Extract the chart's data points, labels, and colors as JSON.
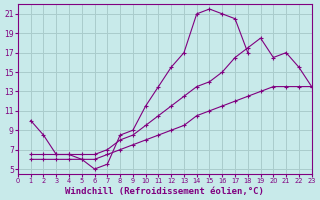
{
  "background_color": "#c8eaea",
  "grid_color": "#aacccc",
  "line_color": "#800080",
  "marker": "+",
  "xlabel": "Windchill (Refroidissement éolien,°C)",
  "xlabel_fontsize": 6.5,
  "ylabel_ticks": [
    5,
    7,
    9,
    11,
    13,
    15,
    17,
    19,
    21
  ],
  "xlabel_ticks": [
    0,
    1,
    2,
    3,
    4,
    5,
    6,
    7,
    8,
    9,
    10,
    11,
    12,
    13,
    14,
    15,
    16,
    17,
    18,
    19,
    20,
    21,
    22,
    23
  ],
  "xlim": [
    0,
    23
  ],
  "ylim": [
    4.5,
    22.0
  ],
  "curves": [
    {
      "x": [
        1,
        2,
        3,
        4,
        5,
        6,
        7,
        8,
        9,
        10,
        11,
        12,
        13,
        14,
        15,
        16,
        17,
        18
      ],
      "y": [
        10,
        8.5,
        6.5,
        6.5,
        6.0,
        5.0,
        5.5,
        8.5,
        9.0,
        11.5,
        13.5,
        15.5,
        17.0,
        21.0,
        21.5,
        21.0,
        20.5,
        17.0
      ]
    },
    {
      "x": [
        1,
        2,
        3,
        4,
        5,
        6,
        7,
        8,
        9,
        10,
        11,
        12,
        13,
        14,
        15,
        16,
        17,
        18,
        19,
        20,
        21,
        22,
        23
      ],
      "y": [
        6.5,
        6.5,
        6.5,
        6.5,
        6.5,
        6.5,
        7.0,
        8.0,
        8.5,
        9.5,
        10.5,
        11.5,
        12.5,
        13.5,
        14.0,
        15.0,
        16.5,
        17.5,
        18.5,
        16.5,
        17.0,
        15.5,
        13.5
      ]
    },
    {
      "x": [
        1,
        2,
        3,
        4,
        5,
        6,
        7,
        8,
        9,
        10,
        11,
        12,
        13,
        14,
        15,
        16,
        17,
        18,
        19,
        20,
        21,
        22,
        23
      ],
      "y": [
        6.0,
        6.0,
        6.0,
        6.0,
        6.0,
        6.0,
        6.5,
        7.0,
        7.5,
        8.0,
        8.5,
        9.0,
        9.5,
        10.5,
        11.0,
        11.5,
        12.0,
        12.5,
        13.0,
        13.5,
        13.5,
        13.5,
        13.5
      ]
    }
  ]
}
